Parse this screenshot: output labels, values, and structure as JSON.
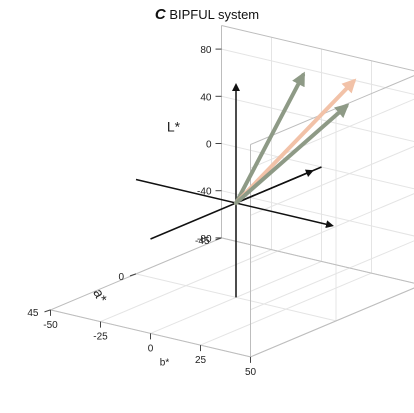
{
  "chart_data": {
    "type": "3d-vector",
    "title": {
      "prefix": "C",
      "text": "BIPFUL system"
    },
    "axes": {
      "z": {
        "label": "L*",
        "range": [
          -80,
          100
        ],
        "ticks": [
          "80",
          "40",
          "0",
          "-40",
          "-80"
        ]
      },
      "y": {
        "label": "a*",
        "range": [
          -45,
          45
        ],
        "ticks": [
          "-45",
          "0",
          "45"
        ]
      },
      "x": {
        "label": "b*",
        "range": [
          -50,
          50
        ],
        "ticks": [
          "-50",
          "-25",
          "0",
          "25",
          "50"
        ]
      }
    },
    "grid": true,
    "vectors": [
      {
        "a": -30,
        "b": 5,
        "L": 90,
        "color": "#8e9a86"
      },
      {
        "a": -25,
        "b": 35,
        "L": 100,
        "color": "#f2c2a8"
      },
      {
        "a": -18,
        "b": 38,
        "L": 85,
        "color": "#8e9a86"
      }
    ],
    "reference_axes": {
      "color": "#111111"
    }
  }
}
